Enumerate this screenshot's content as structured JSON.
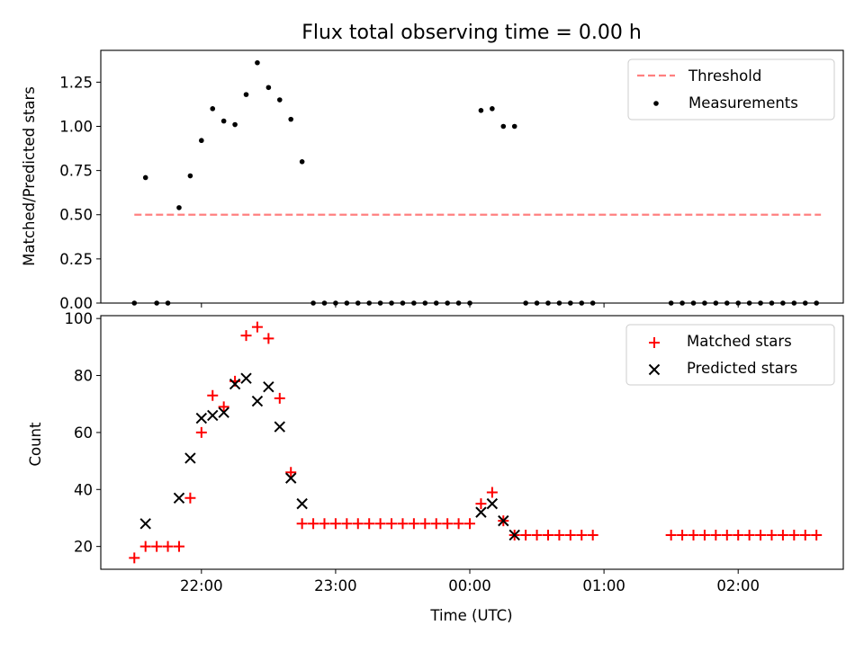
{
  "chart_data": [
    {
      "type": "scatter",
      "title": "Flux total observing time = 0.00 h",
      "xlabel": "",
      "ylabel": "Matched/Predicted stars",
      "xlim": [
        "21:15",
        "02:47"
      ],
      "ylim": [
        0,
        1.43
      ],
      "yticks": [
        "0.00",
        "0.25",
        "0.50",
        "0.75",
        "1.00",
        "1.25"
      ],
      "grid": false,
      "legend_position": "top-right",
      "threshold": {
        "name": "Threshold",
        "value": 0.5,
        "color": "#ff8080",
        "style": "dashed",
        "x_start": "21:30",
        "x_end": "02:37"
      },
      "measurements": {
        "name": "Measurements",
        "color": "#000000",
        "points": [
          [
            "21:30",
            0.0
          ],
          [
            "21:35",
            0.71
          ],
          [
            "21:40",
            0.0
          ],
          [
            "21:45",
            0.0
          ],
          [
            "21:50",
            0.54
          ],
          [
            "21:55",
            0.72
          ],
          [
            "22:00",
            0.92
          ],
          [
            "22:05",
            1.1
          ],
          [
            "22:10",
            1.03
          ],
          [
            "22:15",
            1.01
          ],
          [
            "22:20",
            1.18
          ],
          [
            "22:25",
            1.36
          ],
          [
            "22:30",
            1.22
          ],
          [
            "22:35",
            1.15
          ],
          [
            "22:40",
            1.04
          ],
          [
            "22:45",
            0.8
          ],
          [
            "22:50",
            0.0
          ],
          [
            "22:55",
            0.0
          ],
          [
            "23:00",
            0.0
          ],
          [
            "23:05",
            0.0
          ],
          [
            "23:10",
            0.0
          ],
          [
            "23:15",
            0.0
          ],
          [
            "23:20",
            0.0
          ],
          [
            "23:25",
            0.0
          ],
          [
            "23:30",
            0.0
          ],
          [
            "23:35",
            0.0
          ],
          [
            "23:40",
            0.0
          ],
          [
            "23:45",
            0.0
          ],
          [
            "23:50",
            0.0
          ],
          [
            "23:55",
            0.0
          ],
          [
            "00:00",
            0.0
          ],
          [
            "00:05",
            1.09
          ],
          [
            "00:10",
            1.1
          ],
          [
            "00:15",
            1.0
          ],
          [
            "00:20",
            1.0
          ],
          [
            "00:25",
            0.0
          ],
          [
            "00:30",
            0.0
          ],
          [
            "00:35",
            0.0
          ],
          [
            "00:40",
            0.0
          ],
          [
            "00:45",
            0.0
          ],
          [
            "00:50",
            0.0
          ],
          [
            "00:55",
            0.0
          ],
          [
            "01:30",
            0.0
          ],
          [
            "01:35",
            0.0
          ],
          [
            "01:40",
            0.0
          ],
          [
            "01:45",
            0.0
          ],
          [
            "01:50",
            0.0
          ],
          [
            "01:55",
            0.0
          ],
          [
            "02:00",
            0.0
          ],
          [
            "02:05",
            0.0
          ],
          [
            "02:10",
            0.0
          ],
          [
            "02:15",
            0.0
          ],
          [
            "02:20",
            0.0
          ],
          [
            "02:25",
            0.0
          ],
          [
            "02:30",
            0.0
          ],
          [
            "02:35",
            0.0
          ]
        ]
      }
    },
    {
      "type": "scatter",
      "xlabel": "Time (UTC)",
      "ylabel": "Count",
      "xlim": [
        "21:15",
        "02:47"
      ],
      "ylim": [
        12,
        101
      ],
      "yticks": [
        "20",
        "40",
        "60",
        "80",
        "100"
      ],
      "xticks": [
        "22:00",
        "23:00",
        "00:00",
        "01:00",
        "02:00"
      ],
      "grid": false,
      "legend_position": "top-right",
      "series": [
        {
          "name": "Matched stars",
          "marker": "+",
          "color": "#ff0000",
          "points": [
            [
              "21:30",
              16
            ],
            [
              "21:35",
              20
            ],
            [
              "21:40",
              20
            ],
            [
              "21:45",
              20
            ],
            [
              "21:50",
              20
            ],
            [
              "21:55",
              37
            ],
            [
              "22:00",
              60
            ],
            [
              "22:05",
              73
            ],
            [
              "22:10",
              69
            ],
            [
              "22:15",
              78
            ],
            [
              "22:20",
              94
            ],
            [
              "22:25",
              97
            ],
            [
              "22:30",
              93
            ],
            [
              "22:35",
              72
            ],
            [
              "22:40",
              46
            ],
            [
              "22:45",
              28
            ],
            [
              "22:50",
              28
            ],
            [
              "22:55",
              28
            ],
            [
              "23:00",
              28
            ],
            [
              "23:05",
              28
            ],
            [
              "23:10",
              28
            ],
            [
              "23:15",
              28
            ],
            [
              "23:20",
              28
            ],
            [
              "23:25",
              28
            ],
            [
              "23:30",
              28
            ],
            [
              "23:35",
              28
            ],
            [
              "23:40",
              28
            ],
            [
              "23:45",
              28
            ],
            [
              "23:50",
              28
            ],
            [
              "23:55",
              28
            ],
            [
              "00:00",
              28
            ],
            [
              "00:05",
              35
            ],
            [
              "00:10",
              39
            ],
            [
              "00:15",
              29
            ],
            [
              "00:20",
              24
            ],
            [
              "00:25",
              24
            ],
            [
              "00:30",
              24
            ],
            [
              "00:35",
              24
            ],
            [
              "00:40",
              24
            ],
            [
              "00:45",
              24
            ],
            [
              "00:50",
              24
            ],
            [
              "00:55",
              24
            ],
            [
              "01:30",
              24
            ],
            [
              "01:35",
              24
            ],
            [
              "01:40",
              24
            ],
            [
              "01:45",
              24
            ],
            [
              "01:50",
              24
            ],
            [
              "01:55",
              24
            ],
            [
              "02:00",
              24
            ],
            [
              "02:05",
              24
            ],
            [
              "02:10",
              24
            ],
            [
              "02:15",
              24
            ],
            [
              "02:20",
              24
            ],
            [
              "02:25",
              24
            ],
            [
              "02:30",
              24
            ],
            [
              "02:35",
              24
            ]
          ]
        },
        {
          "name": "Predicted stars",
          "marker": "x",
          "color": "#000000",
          "points": [
            [
              "21:35",
              28
            ],
            [
              "21:50",
              37
            ],
            [
              "21:55",
              51
            ],
            [
              "22:00",
              65
            ],
            [
              "22:05",
              66
            ],
            [
              "22:10",
              67
            ],
            [
              "22:15",
              77
            ],
            [
              "22:20",
              79
            ],
            [
              "22:25",
              71
            ],
            [
              "22:30",
              76
            ],
            [
              "22:35",
              62
            ],
            [
              "22:40",
              44
            ],
            [
              "22:45",
              35
            ],
            [
              "00:05",
              32
            ],
            [
              "00:10",
              35
            ],
            [
              "00:15",
              29
            ],
            [
              "00:20",
              24
            ]
          ]
        }
      ]
    }
  ]
}
